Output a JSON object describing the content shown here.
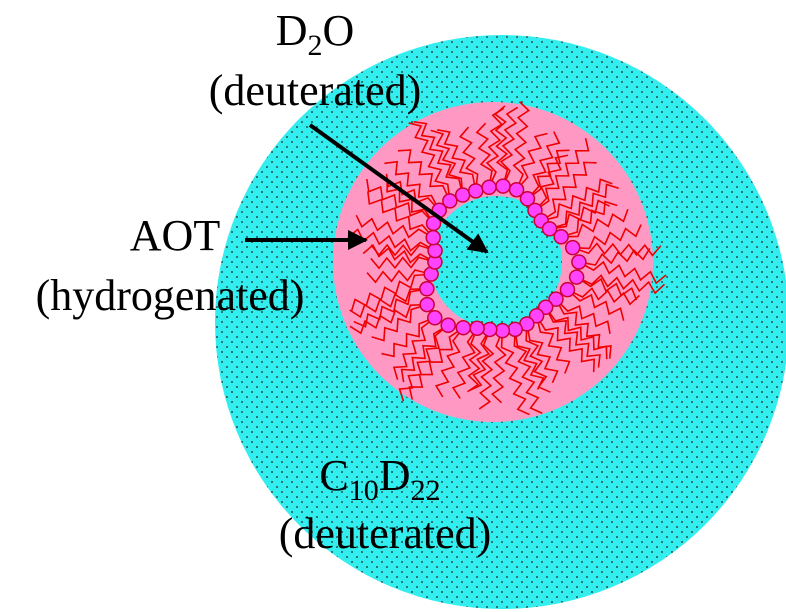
{
  "labels": {
    "water": {
      "symbol": [
        "D",
        "2",
        "O"
      ],
      "note": "(deuterated)"
    },
    "surfactant": {
      "name": "AOT",
      "note": "(hydrogenated)"
    },
    "oil": {
      "symbol": [
        "C",
        "10",
        "D",
        "22"
      ],
      "note": "(deuterated)"
    }
  }
}
